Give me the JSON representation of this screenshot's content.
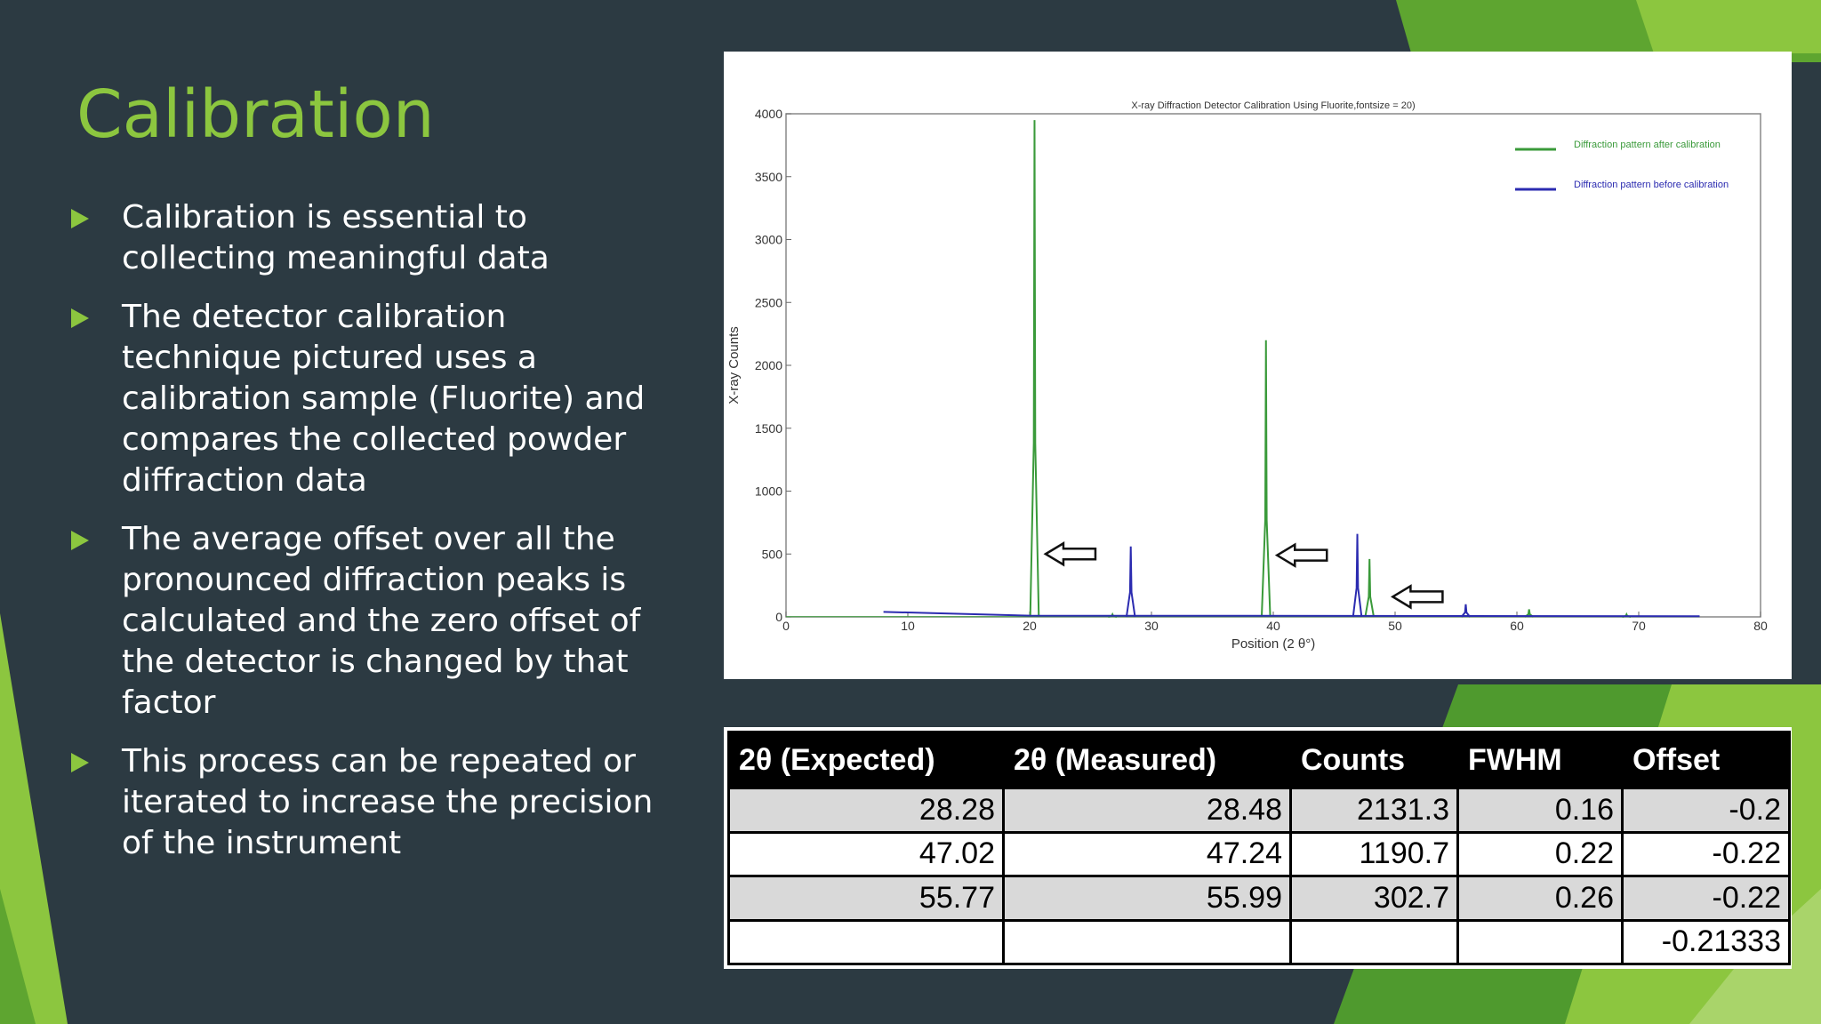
{
  "slide": {
    "title": "Calibration",
    "accent_color": "#8cc63f",
    "background_color": "#2c3a42",
    "bullets": [
      "Calibration is essential to collecting meaningful data",
      "The detector calibration technique pictured uses a calibration sample (Fluorite) and compares the collected powder diffraction data",
      "The average offset over all the pronounced diffraction peaks is calculated and the zero offset of the detector is changed by that factor",
      "This process can be repeated or iterated to increase the precision of the instrument"
    ]
  },
  "chart_data": {
    "type": "line",
    "title": "X-ray Diffraction Detector Calibration Using Fluorite,fontsize = 20)",
    "xlabel": "Position (2 θ°)",
    "ylabel": "X-ray Counts",
    "xlim": [
      0,
      80
    ],
    "ylim": [
      0,
      4000
    ],
    "xticks": [
      0,
      10,
      20,
      30,
      40,
      50,
      60,
      70,
      80
    ],
    "yticks": [
      0,
      500,
      1000,
      1500,
      2000,
      2500,
      3000,
      3500,
      4000
    ],
    "legend_position": "top-right",
    "series": [
      {
        "name": "Diffraction pattern after calibration",
        "color": "#3a9a3a",
        "peaks": [
          [
            20.4,
            3950
          ],
          [
            26.8,
            20
          ],
          [
            39.4,
            2200
          ],
          [
            47.9,
            460
          ],
          [
            61.0,
            60
          ],
          [
            69.0,
            20
          ]
        ]
      },
      {
        "name": "Diffraction pattern before calibration",
        "color": "#2b2bb0",
        "baseline": [
          [
            8,
            40
          ],
          [
            12,
            30
          ],
          [
            20,
            10
          ],
          [
            75,
            5
          ]
        ],
        "peaks": [
          [
            28.3,
            560
          ],
          [
            46.9,
            660
          ],
          [
            55.8,
            100
          ]
        ]
      }
    ],
    "annotations": [
      {
        "type": "left-arrow",
        "x": 23.5,
        "y": 500
      },
      {
        "type": "left-arrow",
        "x": 42.5,
        "y": 490
      },
      {
        "type": "left-arrow",
        "x": 52.0,
        "y": 160
      }
    ]
  },
  "table": {
    "headers": [
      "2θ (Expected)",
      "2θ (Measured)",
      "Counts",
      "FWHM",
      "Offset"
    ],
    "rows": [
      [
        "28.28",
        "28.48",
        "2131.3",
        "0.16",
        "-0.2"
      ],
      [
        "47.02",
        "47.24",
        "1190.7",
        "0.22",
        "-0.22"
      ],
      [
        "55.77",
        "55.99",
        "302.7",
        "0.26",
        "-0.22"
      ],
      [
        "",
        "",
        "",
        "",
        "-0.21333"
      ]
    ]
  }
}
